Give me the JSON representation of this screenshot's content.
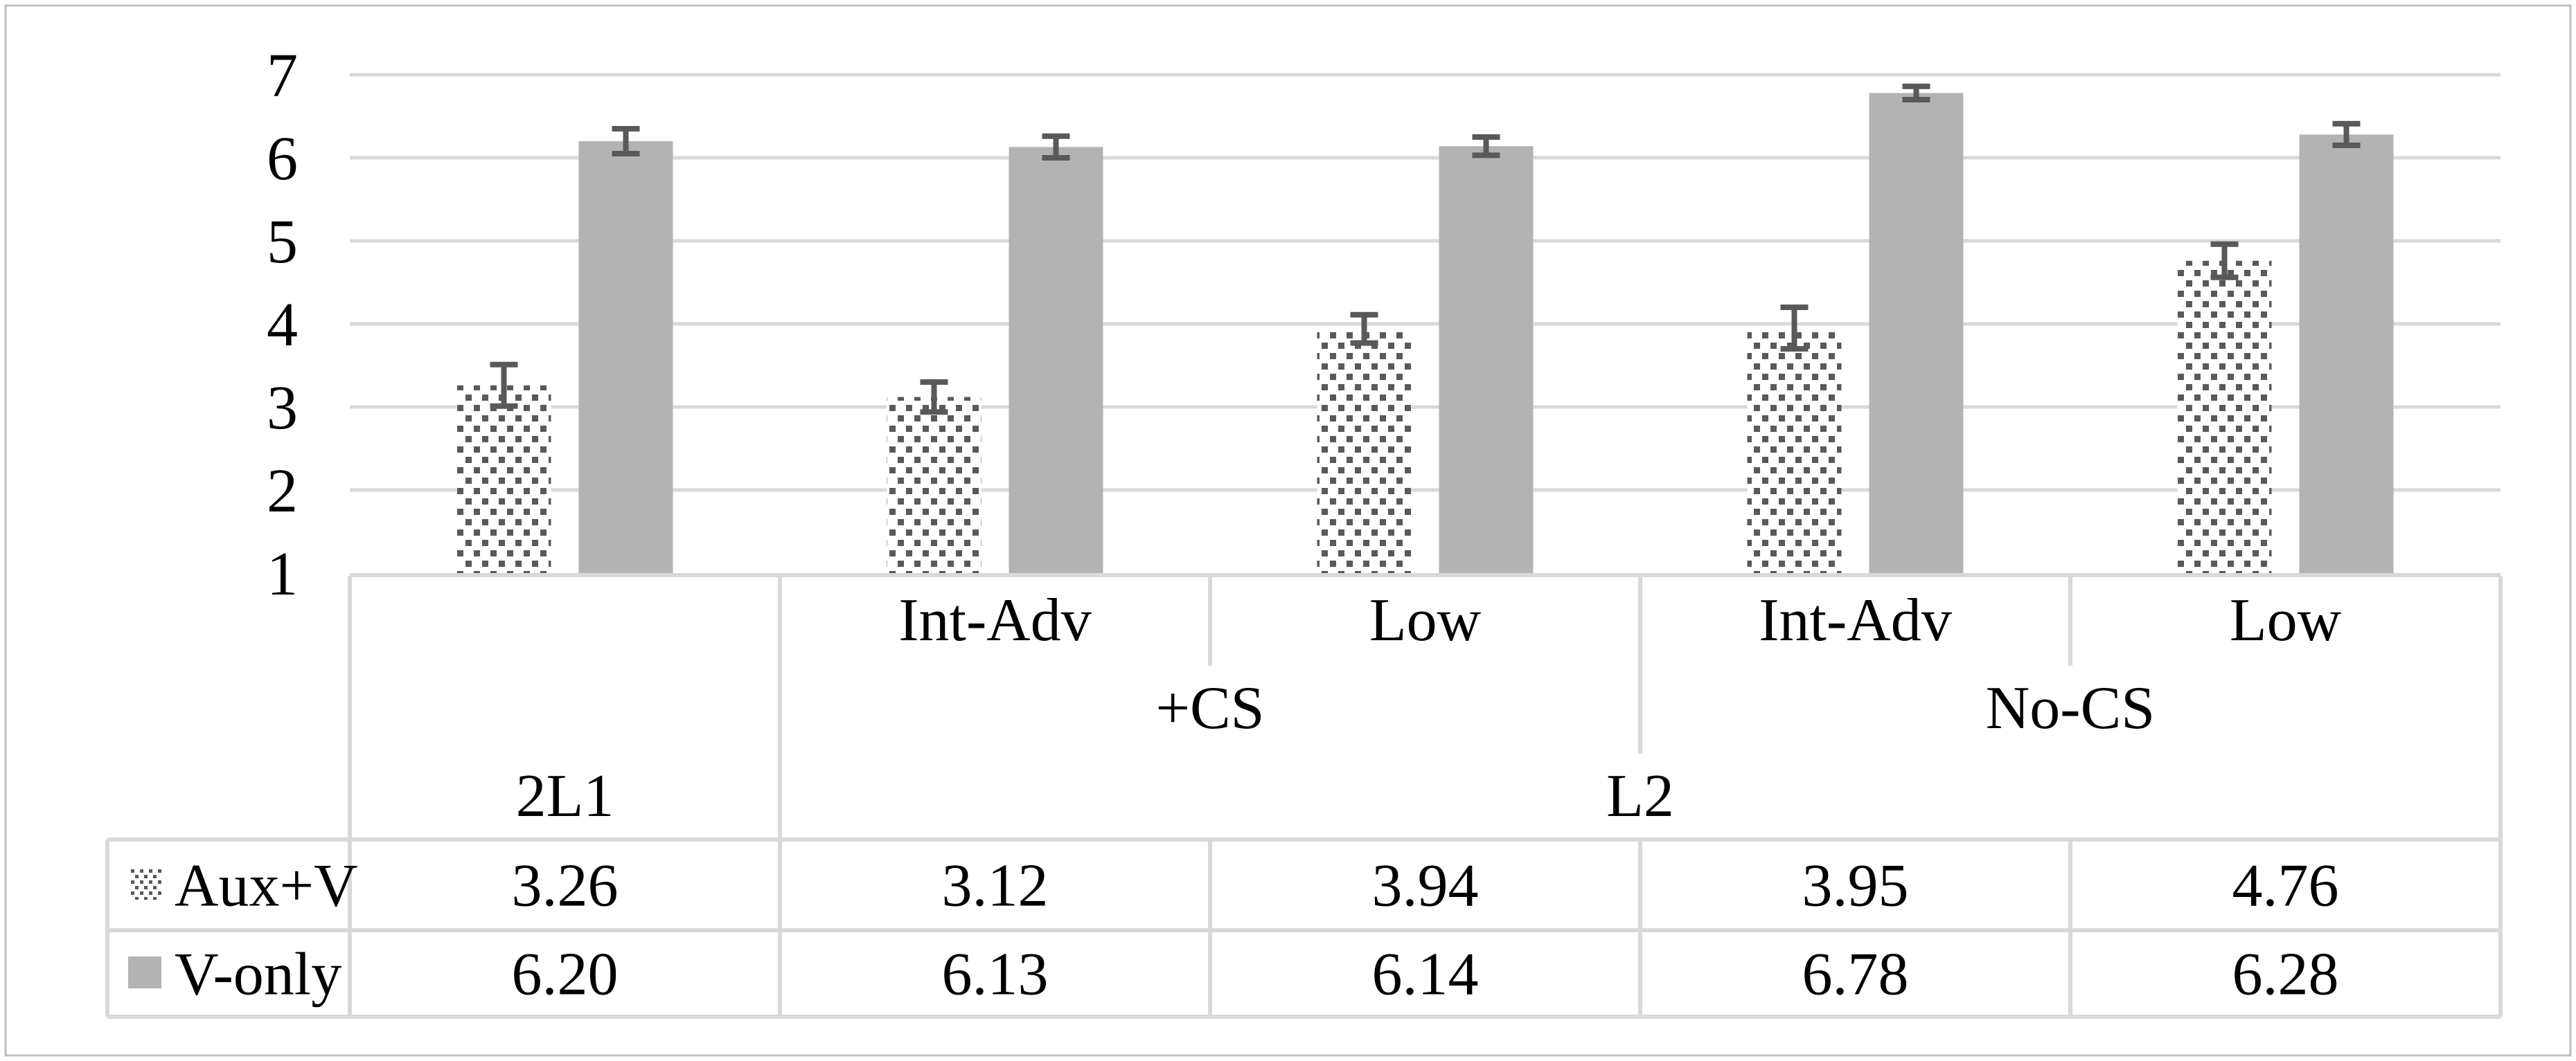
{
  "figure": {
    "background": "#ffffff",
    "border_color": "#bfbfbf"
  },
  "chart_data": {
    "type": "bar",
    "title": "",
    "xlabel": "",
    "ylabel": "",
    "ylim": [
      1,
      7
    ],
    "ytick_labels": [
      "1",
      "2",
      "3",
      "4",
      "5",
      "6",
      "7"
    ],
    "grid": true,
    "legend_position": "bottom-table-left",
    "colors": {
      "solid_bar": "#b3b3b3",
      "dot_color": "#595959",
      "error_bar": "#595959",
      "gridline": "#d9d9d9",
      "table_border": "#d9d9d9",
      "text": "#000000"
    },
    "categories_level1": [
      "",
      "Int-Adv",
      "Low",
      "Int-Adv",
      "Low"
    ],
    "categories_level2": [
      {
        "label": "+CS",
        "start": 1,
        "end": 2
      },
      {
        "label": "No-CS",
        "start": 3,
        "end": 4
      }
    ],
    "categories_level3": [
      {
        "label": "2L1",
        "start": 0,
        "end": 0
      },
      {
        "label": "L2",
        "start": 1,
        "end": 4
      }
    ],
    "series": [
      {
        "name": "Aux+V",
        "fill": "dotted",
        "values": [
          3.26,
          3.12,
          3.94,
          3.95,
          4.76
        ],
        "value_labels": [
          "3.26",
          "3.12",
          "3.94",
          "3.95",
          "4.76"
        ],
        "errors": [
          0.25,
          0.18,
          0.17,
          0.25,
          0.2
        ]
      },
      {
        "name": "V-only",
        "fill": "solid",
        "values": [
          6.2,
          6.13,
          6.14,
          6.78,
          6.28
        ],
        "value_labels": [
          "6.20",
          "6.13",
          "6.14",
          "6.78",
          "6.28"
        ],
        "errors": [
          0.15,
          0.13,
          0.11,
          0.08,
          0.13
        ]
      }
    ]
  }
}
